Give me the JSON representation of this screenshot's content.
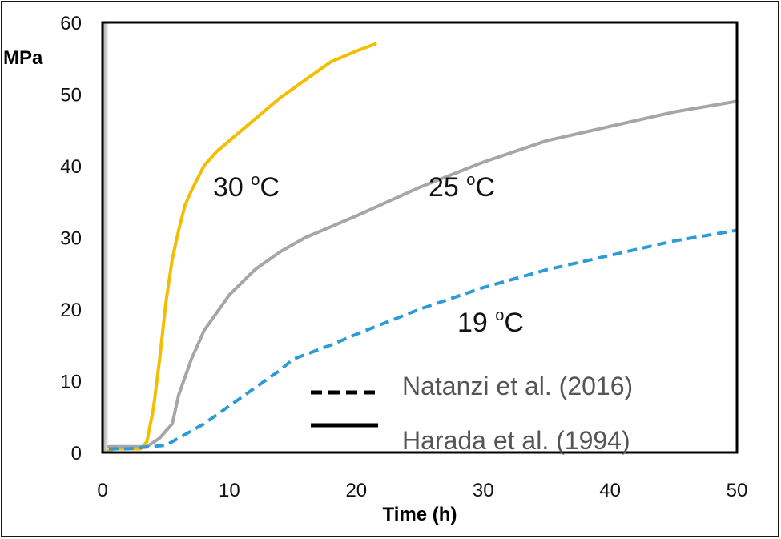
{
  "chart_data": {
    "type": "line",
    "xlabel": "Time (h)",
    "ylabel": "MPa",
    "xlim": [
      0,
      50
    ],
    "ylim": [
      0,
      60
    ],
    "x_ticks": [
      "0",
      "10",
      "20",
      "30",
      "40",
      "50"
    ],
    "y_ticks": [
      "0",
      "10",
      "20",
      "30",
      "40",
      "50",
      "60"
    ],
    "grid": false,
    "series": [
      {
        "name": "30 oC",
        "label_main": "30 ",
        "label_sup": "o",
        "label_unit": "C",
        "color": "#F5BD00",
        "style": "solid",
        "x": [
          0.5,
          1.0,
          2.0,
          3.0,
          3.5,
          4.0,
          4.5,
          5.0,
          5.5,
          6.0,
          6.5,
          7.0,
          8.0,
          9.0,
          10.0,
          12.0,
          14.0,
          16.0,
          18.0,
          20.0,
          21.5
        ],
        "y": [
          0.3,
          0.5,
          0.5,
          0.5,
          1.5,
          6.0,
          13.0,
          21.0,
          27.0,
          31.0,
          34.5,
          36.5,
          40.0,
          42.0,
          43.5,
          46.5,
          49.5,
          52.0,
          54.5,
          56.0,
          57.0
        ]
      },
      {
        "name": "25 oC",
        "label_main": "25 ",
        "label_sup": "o",
        "label_unit": "C",
        "color": "#A6A6A6",
        "style": "solid",
        "x": [
          0.5,
          2.0,
          3.5,
          4.5,
          5.5,
          6.0,
          7.0,
          8.0,
          10.0,
          12.0,
          14.0,
          16.0,
          18.0,
          20.0,
          25.0,
          30.0,
          35.0,
          40.0,
          45.0,
          50.0
        ],
        "y": [
          0.8,
          0.8,
          0.8,
          2.0,
          4.0,
          8.0,
          13.0,
          17.0,
          22.0,
          25.5,
          28.0,
          30.0,
          31.5,
          33.0,
          37.0,
          40.5,
          43.5,
          45.5,
          47.5,
          49.0
        ]
      },
      {
        "name": "19 oC",
        "label_main": "19 ",
        "label_sup": "o",
        "label_unit": "C",
        "color": "#2E9BD6",
        "style": "dashed",
        "x": [
          0.5,
          2.0,
          5.0,
          8.0,
          10.0,
          12.0,
          14.0,
          15.0,
          18.0,
          20.0,
          25.0,
          30.0,
          35.0,
          40.0,
          45.0,
          50.0
        ],
        "y": [
          0.5,
          0.5,
          1.0,
          4.0,
          6.5,
          9.0,
          11.5,
          13.0,
          15.0,
          16.5,
          20.0,
          23.0,
          25.5,
          27.5,
          29.5,
          31.0
        ]
      }
    ],
    "legend": [
      {
        "style": "dashed",
        "label": "Natanzi et al. (2016)"
      },
      {
        "style": "solid",
        "label": "Harada et al. (1994)"
      }
    ]
  }
}
